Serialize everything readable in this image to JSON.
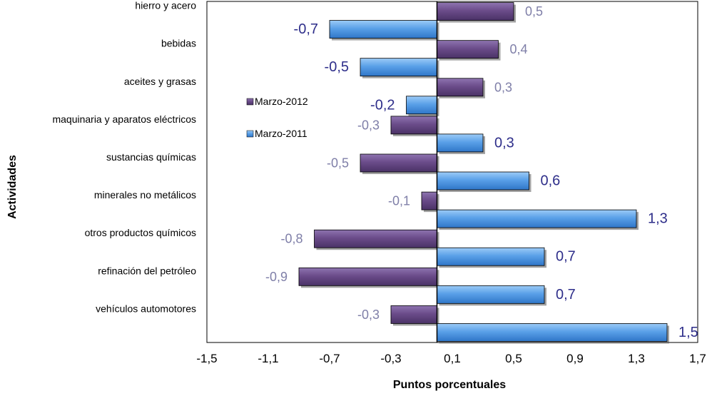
{
  "chart_data": {
    "type": "bar",
    "orientation": "horizontal",
    "categories": [
      "hierro y acero",
      "bebidas",
      "aceites y grasas",
      "maquinaria y aparatos eléctricos",
      "sustancias químicas",
      "minerales no metálicos",
      "otros productos químicos",
      "refinación del petróleo",
      "vehículos automotores"
    ],
    "series": [
      {
        "name": "Marzo-2012",
        "values": [
          0.5,
          0.4,
          0.3,
          -0.3,
          -0.5,
          -0.1,
          -0.8,
          -0.9,
          -0.3
        ],
        "labels": [
          "0,5",
          "0,4",
          "0,3",
          "-0,3",
          "-0,5",
          "-0,1",
          "-0,8",
          "-0,9",
          "-0,3"
        ],
        "color": "#6B4C8A",
        "label_color": "#7F7FA8"
      },
      {
        "name": "Marzo-2011",
        "values": [
          -0.7,
          -0.5,
          -0.2,
          0.3,
          0.6,
          1.3,
          0.7,
          0.7,
          1.5
        ],
        "labels": [
          "-0,7",
          "-0,5",
          "-0,2",
          "0,3",
          "0,6",
          "1,3",
          "0,7",
          "0,7",
          "1,5"
        ],
        "color": "#5AA0E8",
        "label_color": "#2E2E8A"
      }
    ],
    "xlabel": "Puntos porcentuales",
    "ylabel": "Actividades",
    "xlim": [
      -1.5,
      1.7
    ],
    "xticks": [
      -1.5,
      -1.1,
      -0.7,
      -0.3,
      0.1,
      0.5,
      0.9,
      1.3,
      1.7
    ],
    "xtick_labels": [
      "-1,5",
      "-1,1",
      "-0,7",
      "-0,3",
      "0,1",
      "0,5",
      "0,9",
      "1,3",
      "1,7"
    ],
    "grid": false,
    "legend_position": "upper-left inside plot"
  }
}
